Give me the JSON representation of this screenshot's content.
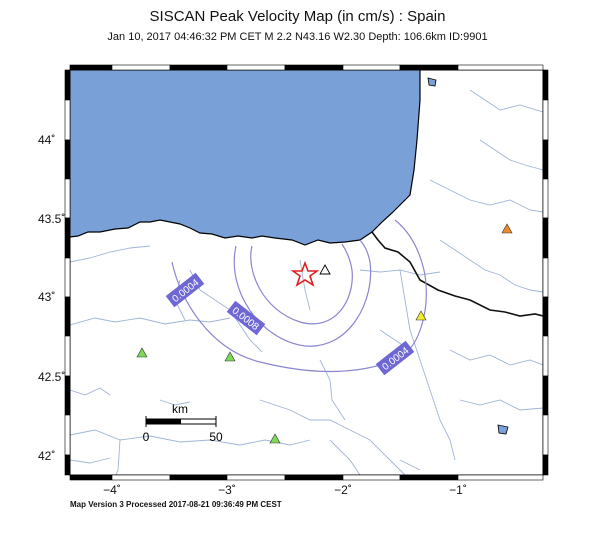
{
  "header": {
    "title": "SISCAN Peak Velocity Map (in cm/s) : Spain",
    "subtitle": "Jan 10, 2017 04:46:32 PM CET   M 2.2   N43.16 W2.30   Depth: 106.6km   ID:9901"
  },
  "footer": {
    "text": "Map Version 3 Processed 2017-08-21 09:36:49 PM CEST"
  },
  "axes": {
    "y_ticks": [
      "44˚",
      "43.5˚",
      "43˚",
      "42.5˚",
      "42˚"
    ],
    "x_ticks": [
      "−4˚",
      "−3˚",
      "−2˚",
      "−1˚"
    ]
  },
  "contours": [
    {
      "label": "0.0004"
    },
    {
      "label": "0.0008"
    },
    {
      "label": "0.0004"
    }
  ],
  "scale_bar": {
    "unit": "km",
    "start": "0",
    "end": "50"
  },
  "colors": {
    "sea": "#7aa0d8",
    "contour": "#8a86cf",
    "label_box": "#6f68d4",
    "epicenter": "#e02020",
    "station_green": "#7ed957",
    "station_yellow": "#f2ec2a",
    "station_orange": "#f08a24",
    "river": "#9fb4d6",
    "border": "#111111"
  },
  "icons": {
    "epicenter": "star-icon",
    "station": "triangle-icon"
  }
}
